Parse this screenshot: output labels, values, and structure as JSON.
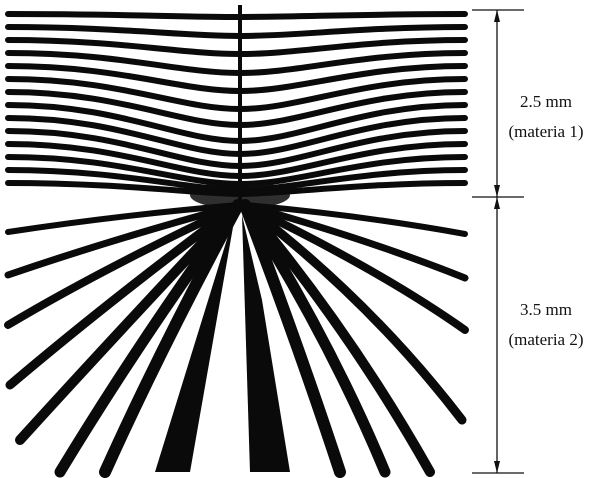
{
  "annotations": {
    "upper": {
      "length": "2.5 mm",
      "material": "(materia 1)"
    },
    "lower": {
      "length": "3.5 mm",
      "material": "(materia 2)"
    }
  }
}
